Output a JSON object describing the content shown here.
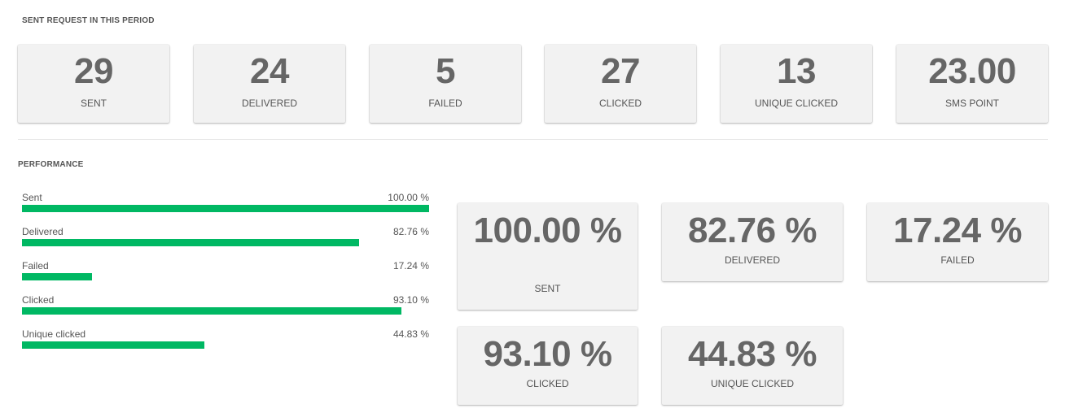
{
  "sent_section": {
    "title": "SENT REQUEST IN THIS PERIOD",
    "cards": [
      {
        "value": "29",
        "label": "SENT"
      },
      {
        "value": "24",
        "label": "DELIVERED"
      },
      {
        "value": "5",
        "label": "FAILED"
      },
      {
        "value": "27",
        "label": "CLICKED"
      },
      {
        "value": "13",
        "label": "UNIQUE CLICKED"
      },
      {
        "value": "23.00",
        "label": "SMS POINT"
      }
    ]
  },
  "performance": {
    "title": "PERFORMANCE",
    "bar_color": "#00b863",
    "rows": [
      {
        "label": "Sent",
        "percent_text": "100.00 %",
        "fill_fraction": 1.0
      },
      {
        "label": "Delivered",
        "percent_text": "82.76 %",
        "fill_fraction": 0.8276
      },
      {
        "label": "Failed",
        "percent_text": "17.24 %",
        "fill_fraction": 0.1724
      },
      {
        "label": "Clicked",
        "percent_text": "93.10 %",
        "fill_fraction": 0.931
      },
      {
        "label": "Unique clicked",
        "percent_text": "44.83 %",
        "fill_fraction": 0.4483
      }
    ],
    "cards": [
      {
        "value": "100.00 %",
        "label": "SENT"
      },
      {
        "value": "82.76 %",
        "label": "DELIVERED"
      },
      {
        "value": "17.24 %",
        "label": "FAILED"
      },
      {
        "value": "93.10 %",
        "label": "CLICKED"
      },
      {
        "value": "44.83 %",
        "label": "UNIQUE CLICKED"
      }
    ]
  }
}
